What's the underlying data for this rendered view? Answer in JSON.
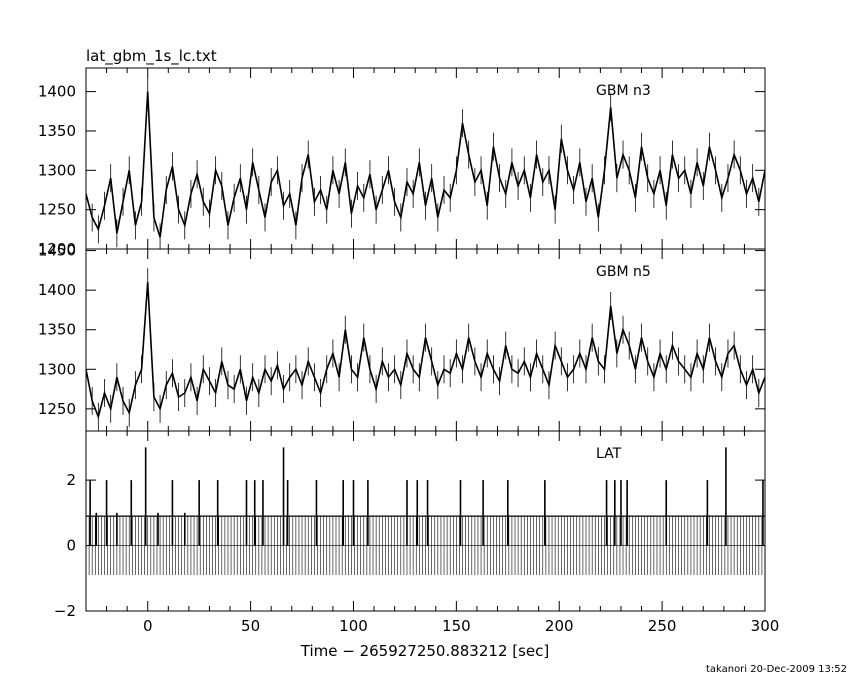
{
  "chart_data": {
    "type": "line",
    "title": "lat_gbm_1s_lc.txt",
    "xlabel": "Time − 265927250.883212 [sec]",
    "footer": "takanori 20-Dec-2009 13:52",
    "xlim": [
      -30,
      300
    ],
    "xticks": [
      0,
      50,
      100,
      150,
      200,
      250,
      300
    ],
    "panels": [
      {
        "name": "GBM n3",
        "ylim": [
          1200,
          1430
        ],
        "yticks": [
          1200,
          1250,
          1300,
          1350,
          1400
        ],
        "x": [
          -30,
          -27,
          -24,
          -21,
          -18,
          -15,
          -12,
          -9,
          -6,
          -3,
          0,
          3,
          6,
          9,
          12,
          15,
          18,
          21,
          24,
          27,
          30,
          33,
          36,
          39,
          42,
          45,
          48,
          51,
          54,
          57,
          60,
          63,
          66,
          69,
          72,
          75,
          78,
          81,
          84,
          87,
          90,
          93,
          96,
          99,
          102,
          105,
          108,
          111,
          114,
          117,
          120,
          123,
          126,
          129,
          132,
          135,
          138,
          141,
          144,
          147,
          150,
          153,
          156,
          159,
          162,
          165,
          168,
          171,
          174,
          177,
          180,
          183,
          186,
          189,
          192,
          195,
          198,
          201,
          204,
          207,
          210,
          213,
          216,
          219,
          222,
          225,
          228,
          231,
          234,
          237,
          240,
          243,
          246,
          249,
          252,
          255,
          258,
          261,
          264,
          267,
          270,
          273,
          276,
          279,
          282,
          285,
          288,
          291,
          294,
          297,
          300
        ],
        "y": [
          1270,
          1240,
          1225,
          1255,
          1290,
          1220,
          1260,
          1300,
          1230,
          1260,
          1400,
          1240,
          1215,
          1275,
          1305,
          1250,
          1230,
          1270,
          1295,
          1260,
          1245,
          1300,
          1280,
          1230,
          1265,
          1290,
          1250,
          1310,
          1275,
          1240,
          1285,
          1300,
          1255,
          1270,
          1230,
          1290,
          1320,
          1260,
          1275,
          1250,
          1300,
          1270,
          1310,
          1245,
          1280,
          1265,
          1295,
          1250,
          1275,
          1300,
          1260,
          1240,
          1285,
          1270,
          1310,
          1255,
          1290,
          1240,
          1275,
          1265,
          1300,
          1360,
          1320,
          1285,
          1300,
          1255,
          1330,
          1290,
          1270,
          1310,
          1280,
          1300,
          1265,
          1320,
          1285,
          1300,
          1250,
          1340,
          1300,
          1275,
          1310,
          1260,
          1290,
          1240,
          1300,
          1380,
          1290,
          1320,
          1300,
          1265,
          1330,
          1290,
          1270,
          1300,
          1255,
          1320,
          1290,
          1300,
          1270,
          1310,
          1280,
          1330,
          1300,
          1265,
          1290,
          1320,
          1300,
          1270,
          1290,
          1260,
          1300
        ]
      },
      {
        "name": "GBM n5",
        "ylim": [
          1222,
          1452
        ],
        "yticks": [
          1250,
          1300,
          1350,
          1400,
          1450
        ],
        "x": [
          -30,
          -27,
          -24,
          -21,
          -18,
          -15,
          -12,
          -9,
          -6,
          -3,
          0,
          3,
          6,
          9,
          12,
          15,
          18,
          21,
          24,
          27,
          30,
          33,
          36,
          39,
          42,
          45,
          48,
          51,
          54,
          57,
          60,
          63,
          66,
          69,
          72,
          75,
          78,
          81,
          84,
          87,
          90,
          93,
          96,
          99,
          102,
          105,
          108,
          111,
          114,
          117,
          120,
          123,
          126,
          129,
          132,
          135,
          138,
          141,
          144,
          147,
          150,
          153,
          156,
          159,
          162,
          165,
          168,
          171,
          174,
          177,
          180,
          183,
          186,
          189,
          192,
          195,
          198,
          201,
          204,
          207,
          210,
          213,
          216,
          219,
          222,
          225,
          228,
          231,
          234,
          237,
          240,
          243,
          246,
          249,
          252,
          255,
          258,
          261,
          264,
          267,
          270,
          273,
          276,
          279,
          282,
          285,
          288,
          291,
          294,
          297,
          300
        ],
        "y": [
          1300,
          1260,
          1240,
          1270,
          1250,
          1290,
          1260,
          1245,
          1280,
          1300,
          1410,
          1265,
          1250,
          1280,
          1295,
          1265,
          1270,
          1290,
          1260,
          1300,
          1285,
          1270,
          1310,
          1280,
          1275,
          1300,
          1260,
          1290,
          1270,
          1300,
          1285,
          1305,
          1275,
          1290,
          1300,
          1280,
          1310,
          1290,
          1270,
          1300,
          1320,
          1290,
          1350,
          1300,
          1290,
          1340,
          1300,
          1275,
          1310,
          1290,
          1300,
          1280,
          1320,
          1300,
          1290,
          1340,
          1310,
          1280,
          1300,
          1295,
          1320,
          1300,
          1340,
          1310,
          1290,
          1320,
          1300,
          1285,
          1330,
          1300,
          1295,
          1310,
          1290,
          1320,
          1300,
          1280,
          1330,
          1310,
          1290,
          1300,
          1320,
          1300,
          1340,
          1310,
          1300,
          1380,
          1320,
          1350,
          1330,
          1300,
          1340,
          1310,
          1290,
          1320,
          1300,
          1330,
          1310,
          1300,
          1290,
          1320,
          1300,
          1340,
          1310,
          1290,
          1320,
          1330,
          1300,
          1280,
          1300,
          1270,
          1290
        ]
      },
      {
        "name": "LAT",
        "ylim": [
          -2,
          3.5
        ],
        "yticks": [
          -2,
          0,
          2
        ],
        "events_x": [
          -28,
          -25,
          -20,
          -15,
          -8,
          -1,
          5,
          12,
          18,
          25,
          34,
          48,
          52,
          56,
          66,
          68,
          82,
          95,
          100,
          107,
          126,
          131,
          136,
          152,
          163,
          175,
          193,
          223,
          227,
          230,
          233,
          252,
          272,
          281,
          299
        ],
        "events_y": [
          2,
          1,
          2,
          1,
          2,
          3,
          1,
          2,
          1,
          2,
          2,
          2,
          2,
          2,
          3,
          2,
          2,
          2,
          2,
          2,
          2,
          2,
          2,
          2,
          2,
          2,
          2,
          2,
          2,
          2,
          2,
          2,
          2,
          3,
          2
        ]
      }
    ]
  }
}
